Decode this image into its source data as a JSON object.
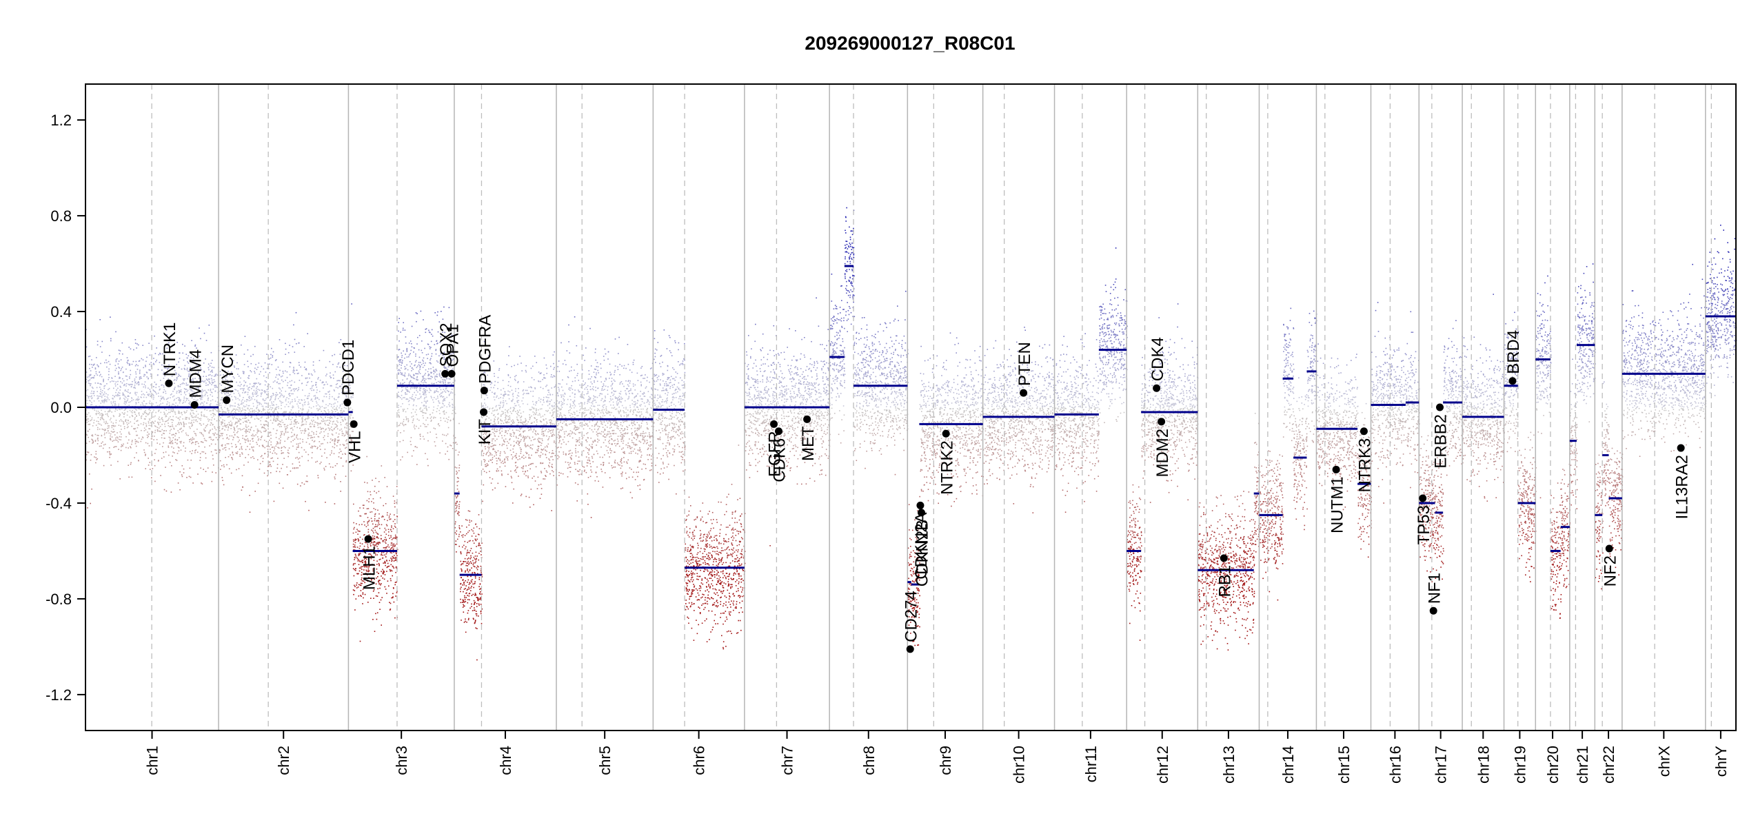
{
  "chart_data": {
    "type": "scatter",
    "title": "209269000127_R08C01",
    "ylim": [
      -1.35,
      1.35
    ],
    "yticks": [
      -1.2,
      -0.8,
      -0.4,
      0.0,
      0.4,
      0.8,
      1.2
    ],
    "ytick_labels": [
      "-1.2",
      "-0.8",
      "-0.4",
      "0.0",
      "0.4",
      "0.8",
      "1.2"
    ],
    "colors": {
      "gain": "#2a2ab0",
      "loss": "#a01010",
      "neutral": "#c8c8c8",
      "segment": "#00008b",
      "gene": "#000000"
    },
    "chromosomes": [
      {
        "name": "chr1",
        "start": 0,
        "end": 249,
        "centromere": 124
      },
      {
        "name": "chr2",
        "start": 249,
        "end": 492,
        "centromere": 342
      },
      {
        "name": "chr3",
        "start": 492,
        "end": 690,
        "centromere": 583
      },
      {
        "name": "chr4",
        "start": 690,
        "end": 881,
        "centromere": 741
      },
      {
        "name": "chr5",
        "start": 881,
        "end": 1062,
        "centromere": 929
      },
      {
        "name": "chr6",
        "start": 1062,
        "end": 1233,
        "centromere": 1121
      },
      {
        "name": "chr7",
        "start": 1233,
        "end": 1392,
        "centromere": 1293
      },
      {
        "name": "chr8",
        "start": 1392,
        "end": 1538,
        "centromere": 1437
      },
      {
        "name": "chr9",
        "start": 1538,
        "end": 1679,
        "centromere": 1587
      },
      {
        "name": "chr10",
        "start": 1679,
        "end": 1813,
        "centromere": 1719
      },
      {
        "name": "chr11",
        "start": 1813,
        "end": 1948,
        "centromere": 1865
      },
      {
        "name": "chr12",
        "start": 1948,
        "end": 2081,
        "centromere": 1982
      },
      {
        "name": "chr13",
        "start": 2081,
        "end": 2196,
        "centromere": 2097
      },
      {
        "name": "chr14",
        "start": 2196,
        "end": 2303,
        "centromere": 2212
      },
      {
        "name": "chr15",
        "start": 2303,
        "end": 2405,
        "centromere": 2319
      },
      {
        "name": "chr16",
        "start": 2405,
        "end": 2495,
        "centromere": 2441
      },
      {
        "name": "chr17",
        "start": 2495,
        "end": 2576,
        "centromere": 2519
      },
      {
        "name": "chr18",
        "start": 2576,
        "end": 2654,
        "centromere": 2593
      },
      {
        "name": "chr19",
        "start": 2654,
        "end": 2713,
        "centromere": 2680
      },
      {
        "name": "chr20",
        "start": 2713,
        "end": 2777,
        "centromere": 2741
      },
      {
        "name": "chr21",
        "start": 2777,
        "end": 2824,
        "centromere": 2788
      },
      {
        "name": "chr22",
        "start": 2824,
        "end": 2875,
        "centromere": 2838
      },
      {
        "name": "chrX",
        "start": 2875,
        "end": 3031,
        "centromere": 2936
      },
      {
        "name": "chrY",
        "start": 3031,
        "end": 3088,
        "centromere": 3042
      }
    ],
    "segments": [
      {
        "x0": 0,
        "x1": 249,
        "y": 0.0
      },
      {
        "x0": 249,
        "x1": 492,
        "y": -0.03
      },
      {
        "x0": 492,
        "x1": 500,
        "y": -0.02
      },
      {
        "x0": 500,
        "x1": 583,
        "y": -0.6
      },
      {
        "x0": 583,
        "x1": 690,
        "y": 0.09
      },
      {
        "x0": 690,
        "x1": 700,
        "y": -0.36
      },
      {
        "x0": 700,
        "x1": 741,
        "y": -0.7
      },
      {
        "x0": 741,
        "x1": 881,
        "y": -0.08
      },
      {
        "x0": 881,
        "x1": 1062,
        "y": -0.05
      },
      {
        "x0": 1062,
        "x1": 1121,
        "y": -0.01
      },
      {
        "x0": 1121,
        "x1": 1233,
        "y": -0.67
      },
      {
        "x0": 1233,
        "x1": 1392,
        "y": 0.0
      },
      {
        "x0": 1392,
        "x1": 1420,
        "y": 0.21
      },
      {
        "x0": 1420,
        "x1": 1437,
        "y": 0.59
      },
      {
        "x0": 1437,
        "x1": 1538,
        "y": 0.09
      },
      {
        "x0": 1538,
        "x1": 1545,
        "y": -0.73
      },
      {
        "x0": 1545,
        "x1": 1560,
        "y": -0.74
      },
      {
        "x0": 1560,
        "x1": 1679,
        "y": -0.07
      },
      {
        "x0": 1679,
        "x1": 1813,
        "y": -0.04
      },
      {
        "x0": 1813,
        "x1": 1896,
        "y": -0.03
      },
      {
        "x0": 1896,
        "x1": 1948,
        "y": 0.24
      },
      {
        "x0": 1948,
        "x1": 1975,
        "y": -0.6
      },
      {
        "x0": 1975,
        "x1": 2081,
        "y": -0.02
      },
      {
        "x0": 2081,
        "x1": 2186,
        "y": -0.68
      },
      {
        "x0": 2186,
        "x1": 2196,
        "y": -0.36
      },
      {
        "x0": 2196,
        "x1": 2240,
        "y": -0.45
      },
      {
        "x0": 2240,
        "x1": 2260,
        "y": 0.12
      },
      {
        "x0": 2260,
        "x1": 2285,
        "y": -0.21
      },
      {
        "x0": 2285,
        "x1": 2303,
        "y": 0.15
      },
      {
        "x0": 2303,
        "x1": 2380,
        "y": -0.09
      },
      {
        "x0": 2380,
        "x1": 2405,
        "y": -0.32
      },
      {
        "x0": 2405,
        "x1": 2470,
        "y": 0.01
      },
      {
        "x0": 2470,
        "x1": 2495,
        "y": 0.02
      },
      {
        "x0": 2495,
        "x1": 2525,
        "y": -0.4
      },
      {
        "x0": 2525,
        "x1": 2540,
        "y": -0.44
      },
      {
        "x0": 2540,
        "x1": 2576,
        "y": 0.02
      },
      {
        "x0": 2576,
        "x1": 2640,
        "y": -0.04
      },
      {
        "x0": 2640,
        "x1": 2654,
        "y": -0.04
      },
      {
        "x0": 2654,
        "x1": 2680,
        "y": 0.09
      },
      {
        "x0": 2680,
        "x1": 2713,
        "y": -0.4
      },
      {
        "x0": 2713,
        "x1": 2741,
        "y": 0.2
      },
      {
        "x0": 2741,
        "x1": 2760,
        "y": -0.6
      },
      {
        "x0": 2760,
        "x1": 2777,
        "y": -0.5
      },
      {
        "x0": 2777,
        "x1": 2790,
        "y": -0.14
      },
      {
        "x0": 2790,
        "x1": 2824,
        "y": 0.26
      },
      {
        "x0": 2824,
        "x1": 2838,
        "y": -0.45
      },
      {
        "x0": 2838,
        "x1": 2850,
        "y": -0.2
      },
      {
        "x0": 2850,
        "x1": 2875,
        "y": -0.38
      },
      {
        "x0": 2875,
        "x1": 3031,
        "y": 0.14
      },
      {
        "x0": 3031,
        "x1": 3088,
        "y": 0.38
      }
    ],
    "genes": [
      {
        "name": "NTRK1",
        "x": 156,
        "y": 0.1,
        "label_side": "above"
      },
      {
        "name": "MDM4",
        "x": 204,
        "y": 0.01,
        "label_side": "above"
      },
      {
        "name": "MYCN",
        "x": 264,
        "y": 0.03,
        "label_side": "above"
      },
      {
        "name": "PDCD1",
        "x": 490,
        "y": 0.02,
        "label_side": "above"
      },
      {
        "name": "VHL",
        "x": 502,
        "y": -0.07,
        "label_side": "below"
      },
      {
        "name": "MLH1",
        "x": 529,
        "y": -0.55,
        "label_side": "below"
      },
      {
        "name": "SOX2",
        "x": 673,
        "y": 0.14,
        "label_side": "above"
      },
      {
        "name": "OPA1",
        "x": 685,
        "y": 0.14,
        "label_side": "above"
      },
      {
        "name": "PDGFRA",
        "x": 746,
        "y": 0.07,
        "label_side": "above"
      },
      {
        "name": "KIT",
        "x": 745,
        "y": -0.02,
        "label_side": "below"
      },
      {
        "name": "EGFR",
        "x": 1288,
        "y": -0.07,
        "label_side": "below"
      },
      {
        "name": "CDK6",
        "x": 1297,
        "y": -0.1,
        "label_side": "below"
      },
      {
        "name": "MET",
        "x": 1350,
        "y": -0.05,
        "label_side": "below"
      },
      {
        "name": "CD274",
        "x": 1543,
        "y": -1.01,
        "label_side": "above"
      },
      {
        "name": "CDKN2A",
        "x": 1562,
        "y": -0.41,
        "label_side": "below"
      },
      {
        "name": "CDKN2B",
        "x": 1564,
        "y": -0.44,
        "label_side": "below"
      },
      {
        "name": "NTRK2",
        "x": 1610,
        "y": -0.11,
        "label_side": "below"
      },
      {
        "name": "PTEN",
        "x": 1755,
        "y": 0.06,
        "label_side": "above"
      },
      {
        "name": "CDK4",
        "x": 2004,
        "y": 0.08,
        "label_side": "above"
      },
      {
        "name": "MDM2",
        "x": 2013,
        "y": -0.06,
        "label_side": "below"
      },
      {
        "name": "RB1",
        "x": 2130,
        "y": -0.63,
        "label_side": "below"
      },
      {
        "name": "NUTM1",
        "x": 2340,
        "y": -0.26,
        "label_side": "below"
      },
      {
        "name": "NTRK3",
        "x": 2392,
        "y": -0.1,
        "label_side": "below"
      },
      {
        "name": "TP53",
        "x": 2502,
        "y": -0.38,
        "label_side": "below"
      },
      {
        "name": "NF1",
        "x": 2522,
        "y": -0.85,
        "label_side": "above"
      },
      {
        "name": "ERBB2",
        "x": 2534,
        "y": 0.0,
        "label_side": "below"
      },
      {
        "name": "BRD4",
        "x": 2670,
        "y": 0.11,
        "label_side": "above"
      },
      {
        "name": "NF2",
        "x": 2851,
        "y": -0.59,
        "label_side": "below"
      },
      {
        "name": "IL13RA2",
        "x": 2985,
        "y": -0.17,
        "label_side": "below"
      }
    ]
  }
}
